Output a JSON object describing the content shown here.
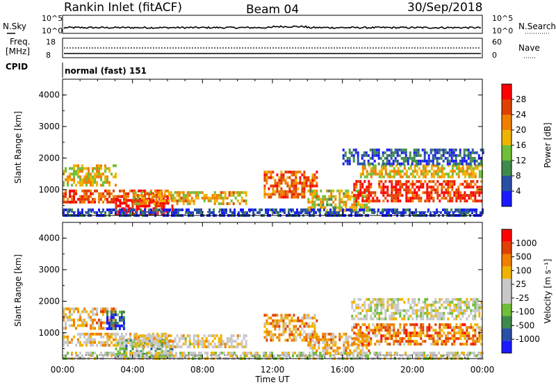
{
  "header": {
    "station": "Rankin Inlet (fitACF)",
    "beam": "Beam 04",
    "date": "30/Sep/2018"
  },
  "noise_panel": {
    "left_label": "N.Sky",
    "right_label": "N.Search",
    "left_ticks": [
      "10^5",
      "10^0"
    ],
    "right_ticks": [
      "10^5",
      "10^0"
    ]
  },
  "freq_panel": {
    "left_label_1": "Freq.",
    "left_label_2": "[MHz]",
    "right_label": "Nave",
    "left_ticks": [
      "18",
      "8"
    ],
    "right_ticks": [
      "60",
      "0"
    ]
  },
  "cpid": {
    "label": "CPID",
    "value": "normal (fast) 151"
  },
  "colors": {
    "power_scale": [
      "#1a1aff",
      "#2a4fa6",
      "#3f8a4a",
      "#6fbf3a",
      "#f0b400",
      "#f07f00",
      "#e04000",
      "#ff0000"
    ],
    "velocity_scale": [
      "#ff0000",
      "#e04000",
      "#f07f00",
      "#f0b400",
      "#c8c8c8",
      "#c8c8c8",
      "#6fbf3a",
      "#3f8a4a",
      "#2a4fa6",
      "#1a1aff"
    ],
    "ground_scatter": "#9a9a9a"
  },
  "chart_data": [
    {
      "type": "heatmap",
      "title": "",
      "ylabel": "Slant Range [km]",
      "xlabel": "",
      "ylim": [
        180,
        4500
      ],
      "yticks": [
        "1000",
        "2000",
        "3000",
        "4000"
      ],
      "colorbar": {
        "label": "Power [dB]",
        "range": [
          0,
          32
        ],
        "ticks": [
          "4",
          "8",
          "12",
          "16",
          "20",
          "24",
          "28"
        ]
      },
      "echo_regions": [
        {
          "t0": 0.0,
          "t1": 3.0,
          "r0": 1150,
          "r1": 1800,
          "level": 0.55
        },
        {
          "t0": 0.0,
          "t1": 6.0,
          "r0": 600,
          "r1": 1000,
          "level": 0.8
        },
        {
          "t0": 3.0,
          "t1": 6.3,
          "r0": 200,
          "r1": 700,
          "level": 0.95
        },
        {
          "t0": 4.0,
          "t1": 10.5,
          "r0": 550,
          "r1": 950,
          "level": 0.6
        },
        {
          "t0": 11.5,
          "t1": 14.5,
          "r0": 800,
          "r1": 1600,
          "level": 0.75
        },
        {
          "t0": 14.0,
          "t1": 17.5,
          "r0": 300,
          "r1": 1000,
          "level": 0.5
        },
        {
          "t0": 16.5,
          "t1": 24.0,
          "r0": 600,
          "r1": 1300,
          "level": 0.85
        },
        {
          "t0": 17.0,
          "t1": 24.0,
          "r0": 1400,
          "r1": 1800,
          "level": 0.55
        },
        {
          "t0": 16.0,
          "t1": 24.0,
          "r0": 1800,
          "r1": 2300,
          "level": 0.2
        },
        {
          "t0": 0.0,
          "t1": 24.0,
          "r0": 180,
          "r1": 400,
          "level": 0.15
        }
      ]
    },
    {
      "type": "heatmap",
      "title": "",
      "ylabel": "Slant Range [km]",
      "xlabel": "Time UT",
      "ylim": [
        180,
        4500
      ],
      "yticks": [
        "1000",
        "2000",
        "3000",
        "4000"
      ],
      "xticks": [
        "00:00",
        "04:00",
        "08:00",
        "12:00",
        "16:00",
        "20:00",
        "00:00"
      ],
      "colorbar": {
        "label": "Velocity [m s⁻¹]",
        "ticks": [
          "1000",
          "500",
          "100",
          "25",
          "-25",
          "-100",
          "-500",
          "-1000"
        ]
      },
      "echo_regions": [
        {
          "t0": 0.0,
          "t1": 3.0,
          "r0": 1150,
          "r1": 1800,
          "level": 0.35
        },
        {
          "t0": 2.5,
          "t1": 3.5,
          "r0": 1100,
          "r1": 1700,
          "level": 0.85
        },
        {
          "t0": 0.0,
          "t1": 6.0,
          "r0": 600,
          "r1": 1000,
          "level": 0.4
        },
        {
          "t0": 3.0,
          "t1": 6.3,
          "r0": 200,
          "r1": 800,
          "level": 0.65
        },
        {
          "t0": 4.0,
          "t1": 10.5,
          "r0": 550,
          "r1": 950,
          "level": 0.45
        },
        {
          "t0": 11.5,
          "t1": 14.5,
          "r0": 800,
          "r1": 1600,
          "level": 0.3
        },
        {
          "t0": 14.0,
          "t1": 17.5,
          "r0": 300,
          "r1": 1000,
          "level": 0.35
        },
        {
          "t0": 16.5,
          "t1": 24.0,
          "r0": 600,
          "r1": 1300,
          "level": 0.25
        },
        {
          "t0": 16.5,
          "t1": 24.0,
          "r0": 1400,
          "r1": 2100,
          "level": 0.5
        },
        {
          "t0": 0.0,
          "t1": 24.0,
          "r0": 180,
          "r1": 400,
          "level": 0.5
        }
      ]
    }
  ]
}
